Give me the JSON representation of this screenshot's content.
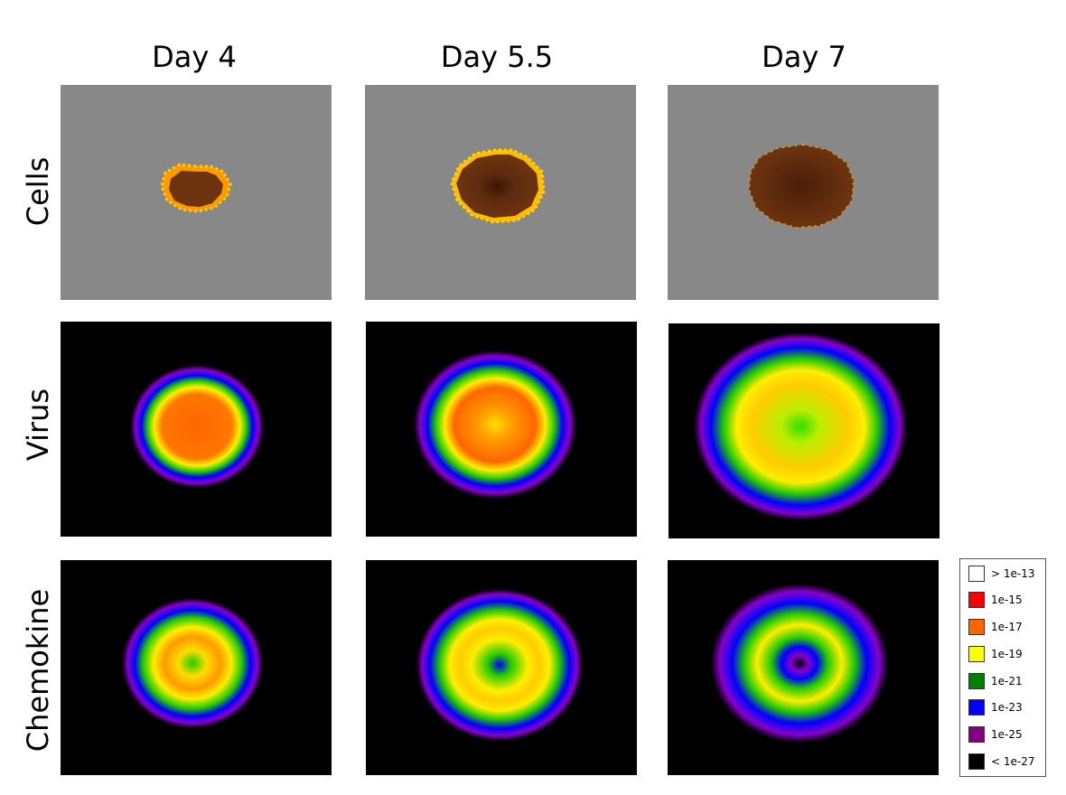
{
  "columns": [
    "Day 4",
    "Day 5.5",
    "Day 7"
  ],
  "rows": [
    "Cells",
    "Virus",
    "Chemokine"
  ],
  "legend": [
    {
      "label": "> 1e-13",
      "color": "#ffffff"
    },
    {
      "label": "1e-15",
      "color": "#ff0000"
    },
    {
      "label": "1e-17",
      "color": "#ff6600"
    },
    {
      "label": "1e-19",
      "color": "#ffff00"
    },
    {
      "label": "1e-21",
      "color": "#008000"
    },
    {
      "label": "1e-23",
      "color": "#0000ff"
    },
    {
      "label": "1e-25",
      "color": "#800080"
    },
    {
      "label": "< 1e-27",
      "color": "#000000"
    }
  ]
}
